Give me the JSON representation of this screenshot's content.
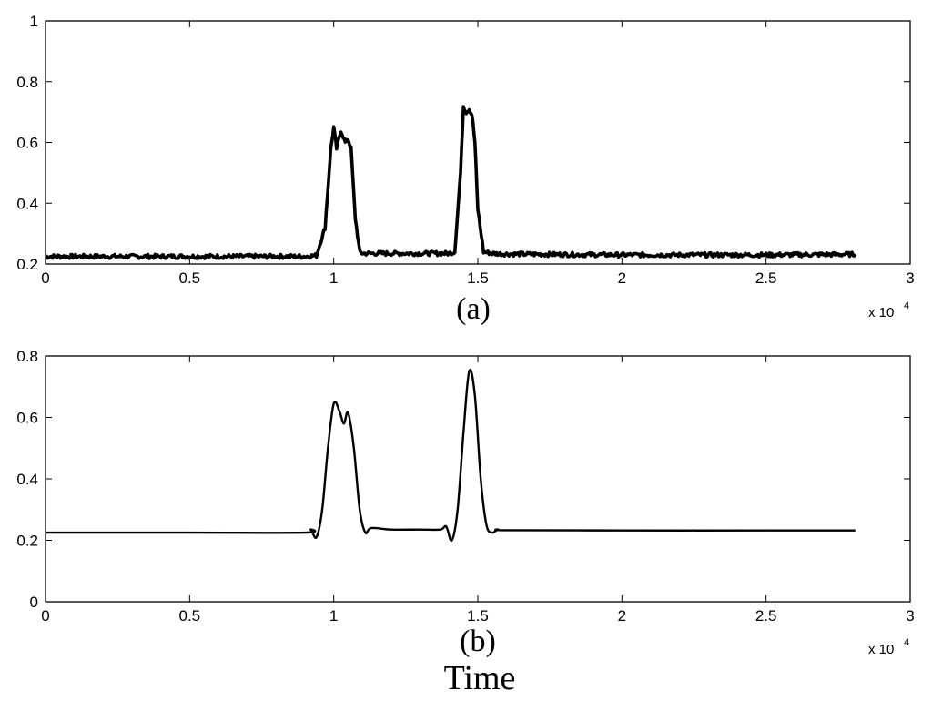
{
  "figure": {
    "xlabel": "Time"
  },
  "chart_data": [
    {
      "type": "line",
      "panel_label": "(a)",
      "x_multiplier": "x 10",
      "x_multiplier_exp": "4",
      "xlim": [
        0,
        3
      ],
      "ylim": [
        0.2,
        1
      ],
      "xticks": [
        "0",
        "0.5",
        "1",
        "1.5",
        "2",
        "2.5",
        "3"
      ],
      "yticks": [
        "0.2",
        "0.4",
        "0.6",
        "0.8",
        "1"
      ],
      "grid": false,
      "noisy": true,
      "series": [
        {
          "x": [
            0,
            0.5,
            0.9,
            0.94,
            0.97,
            0.99,
            1.0,
            1.01,
            1.025,
            1.04,
            1.05,
            1.06,
            1.075,
            1.09,
            1.1,
            1.2,
            1.4,
            1.42,
            1.44,
            1.45,
            1.46,
            1.47,
            1.48,
            1.49,
            1.5,
            1.52,
            1.55,
            1.6,
            2.0,
            2.5,
            2.81
          ],
          "y": [
            0.225,
            0.225,
            0.225,
            0.228,
            0.32,
            0.58,
            0.65,
            0.58,
            0.64,
            0.6,
            0.61,
            0.58,
            0.35,
            0.24,
            0.235,
            0.235,
            0.235,
            0.24,
            0.5,
            0.72,
            0.7,
            0.71,
            0.69,
            0.6,
            0.38,
            0.24,
            0.235,
            0.233,
            0.23,
            0.23,
            0.232
          ]
        }
      ]
    },
    {
      "type": "line",
      "panel_label": "(b)",
      "x_multiplier": "x 10",
      "x_multiplier_exp": "4",
      "xlim": [
        0,
        3
      ],
      "ylim": [
        0,
        0.8
      ],
      "xticks": [
        "0",
        "0.5",
        "1",
        "1.5",
        "2",
        "2.5",
        "3"
      ],
      "yticks": [
        "0",
        "0.2",
        "0.4",
        "0.6",
        "0.8"
      ],
      "grid": false,
      "noisy": false,
      "series": [
        {
          "x": [
            0,
            0.5,
            0.9,
            0.92,
            0.94,
            0.96,
            0.98,
            1.0,
            1.02,
            1.035,
            1.05,
            1.07,
            1.09,
            1.11,
            1.13,
            1.2,
            1.3,
            1.37,
            1.39,
            1.41,
            1.43,
            1.45,
            1.47,
            1.49,
            1.51,
            1.53,
            1.55,
            1.57,
            1.6,
            2.0,
            2.5,
            2.81
          ],
          "y": [
            0.225,
            0.225,
            0.225,
            0.235,
            0.21,
            0.3,
            0.5,
            0.645,
            0.62,
            0.58,
            0.615,
            0.5,
            0.3,
            0.225,
            0.24,
            0.235,
            0.235,
            0.235,
            0.245,
            0.2,
            0.3,
            0.55,
            0.75,
            0.67,
            0.4,
            0.25,
            0.225,
            0.235,
            0.233,
            0.232,
            0.232,
            0.232
          ]
        }
      ]
    }
  ]
}
